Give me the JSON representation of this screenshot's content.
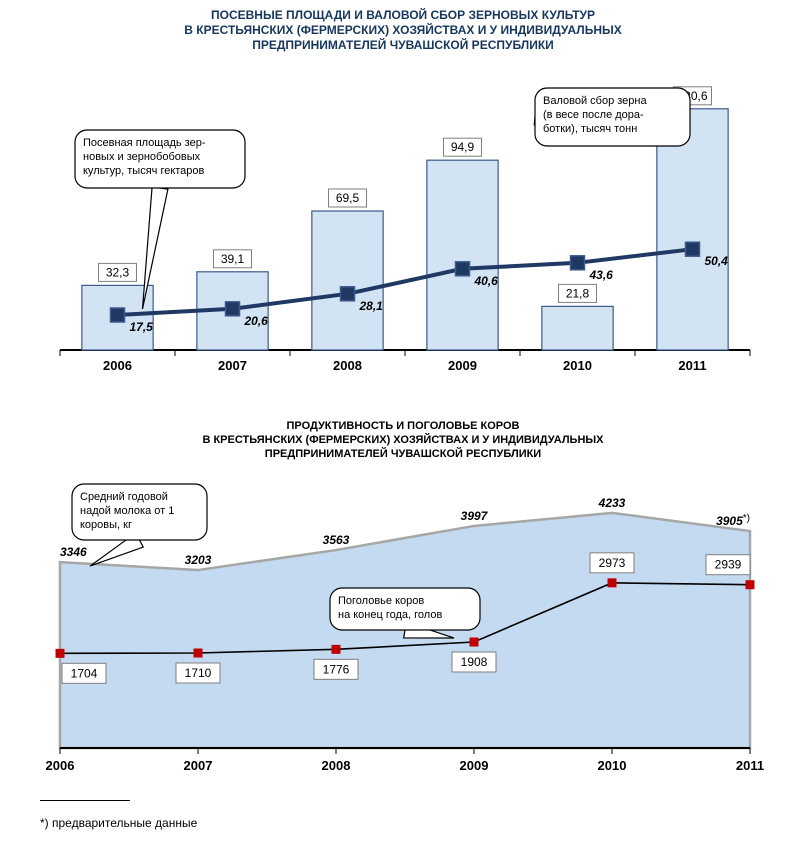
{
  "chart1": {
    "type": "bar+line",
    "title_lines": [
      "ПОСЕВНЫЕ ПЛОЩАДИ И ВАЛОВОЙ СБОР ЗЕРНОВЫХ КУЛЬТУР",
      "В КРЕСТЬЯНСКИХ (ФЕРМЕРСКИХ) ХОЗЯЙСТВАХ И У ИНДИВИДУАЛЬНЫХ",
      "ПРЕДПРИНИМАТЕЛЕЙ ЧУВАШСКОЙ РЕСПУБЛИКИ"
    ],
    "title_fontsize": 12,
    "title_color": "#17365d",
    "categories": [
      "2006",
      "2007",
      "2008",
      "2009",
      "2010",
      "2011"
    ],
    "bar_values": [
      32.3,
      39.1,
      69.5,
      94.9,
      21.8,
      120.6
    ],
    "bar_labels": [
      "32,3",
      "39,1",
      "69,5",
      "94,9",
      "21,8",
      "120,6"
    ],
    "line_values": [
      17.5,
      20.6,
      28.1,
      40.6,
      43.6,
      50.4
    ],
    "line_labels": [
      "17,5",
      "20,6",
      "28,1",
      "40,6",
      "43,6",
      "50,4"
    ],
    "y_max": 125,
    "bar_fill": "#d2e3f4",
    "bar_stroke": "#3c5a8a",
    "line_color": "#1f3864",
    "marker_fill": "#1f3864",
    "marker_stroke": "#3c5a8a",
    "axis_color": "#000000",
    "label_box_stroke": "#7f7f7f",
    "cat_font_weight": "bold",
    "cat_fontsize": 13,
    "bar_label_fontsize": 12,
    "line_label_fontsize": 12,
    "line_label_style": "italic bold",
    "callout1_text": [
      "Посевная площадь зер-",
      "новых и зернобобовых",
      "культур, тысяч гектаров"
    ],
    "callout2_text": [
      "Валовой сбор зерна",
      "(в весе после дора-",
      "ботки), тысяч тонн"
    ],
    "callout_fontsize": 11,
    "callout_color": "#000000",
    "callout_stroke": "#000000"
  },
  "chart2": {
    "type": "area+line",
    "title_lines": [
      "ПРОДУКТИВНОСТЬ И ПОГОЛОВЬЕ КОРОВ",
      "В КРЕСТЬЯНСКИХ (ФЕРМЕРСКИХ) ХОЗЯЙСТВАХ  И У ИНДИВИДУАЛЬНЫХ",
      "ПРЕДПРИНИМАТЕЛЕЙ ЧУВАШСКОЙ РЕСПУБЛИКИ"
    ],
    "title_fontsize": 11,
    "title_color": "#000000",
    "categories": [
      "2006",
      "2007",
      "2008",
      "2009",
      "2010",
      "2011"
    ],
    "area_values": [
      3346,
      3203,
      3563,
      3997,
      4233,
      3905
    ],
    "area_labels": [
      "3346",
      "3203",
      "3563",
      "3997",
      "4233",
      "3905"
    ],
    "area_last_suffix": "*)",
    "line_values": [
      1704,
      1710,
      1776,
      1908,
      2973,
      2939
    ],
    "line_labels": [
      "1704",
      "1710",
      "1776",
      "1908",
      "2973",
      "2939"
    ],
    "y_max": 4500,
    "area_fill": "#c3daf0",
    "area_stroke": "#a6a6a6",
    "line_color": "#000000",
    "marker_fill": "#c00000",
    "axis_color": "#000000",
    "cat_font_weight": "bold",
    "cat_fontsize": 13,
    "area_label_fontsize": 12,
    "area_label_style": "italic bold",
    "line_label_fontsize": 12,
    "callout1_text": [
      "Средний годовой",
      "надой молока от 1",
      "коровы, кг"
    ],
    "callout2_text": [
      "Поголовье коров",
      "на конец года, голов"
    ],
    "callout_fontsize": 11,
    "callout_stroke": "#000000"
  },
  "footnote": "*) предварительные данные",
  "footnote_fontsize": 12,
  "footnote_color": "#000000"
}
